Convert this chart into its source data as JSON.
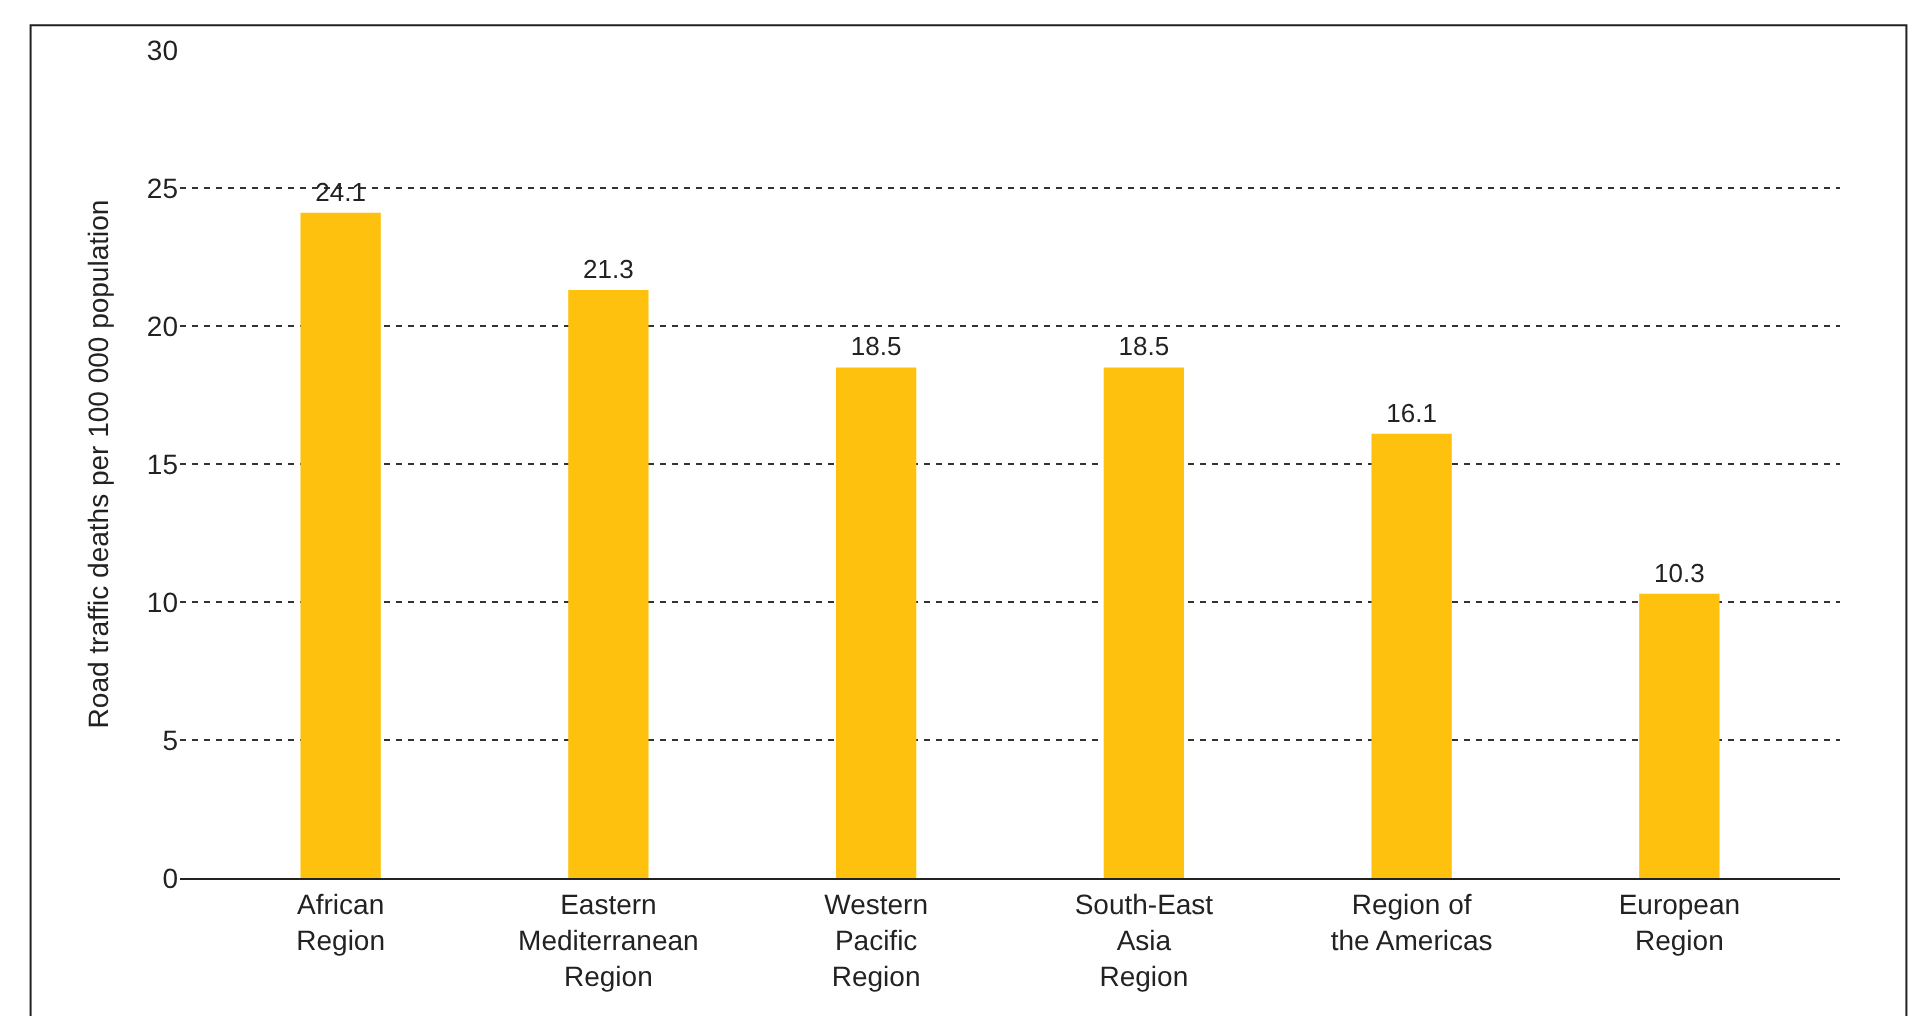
{
  "chart_data": {
    "type": "bar",
    "ylabel": "Road traffic deaths per 100 000 population",
    "categories": [
      "African\nRegion",
      "Eastern\nMediterranean\nRegion",
      "Western\nPacific\nRegion",
      "South-East\nAsia\nRegion",
      "Region of\nthe Americas",
      "European\nRegion"
    ],
    "values": [
      24.1,
      21.3,
      18.5,
      18.5,
      16.1,
      10.3
    ],
    "color": "#fec10e",
    "ylim": [
      0,
      30
    ],
    "yticks": [
      0,
      5,
      10,
      15,
      20,
      25,
      30
    ],
    "grid": "y",
    "data_labels": true
  }
}
